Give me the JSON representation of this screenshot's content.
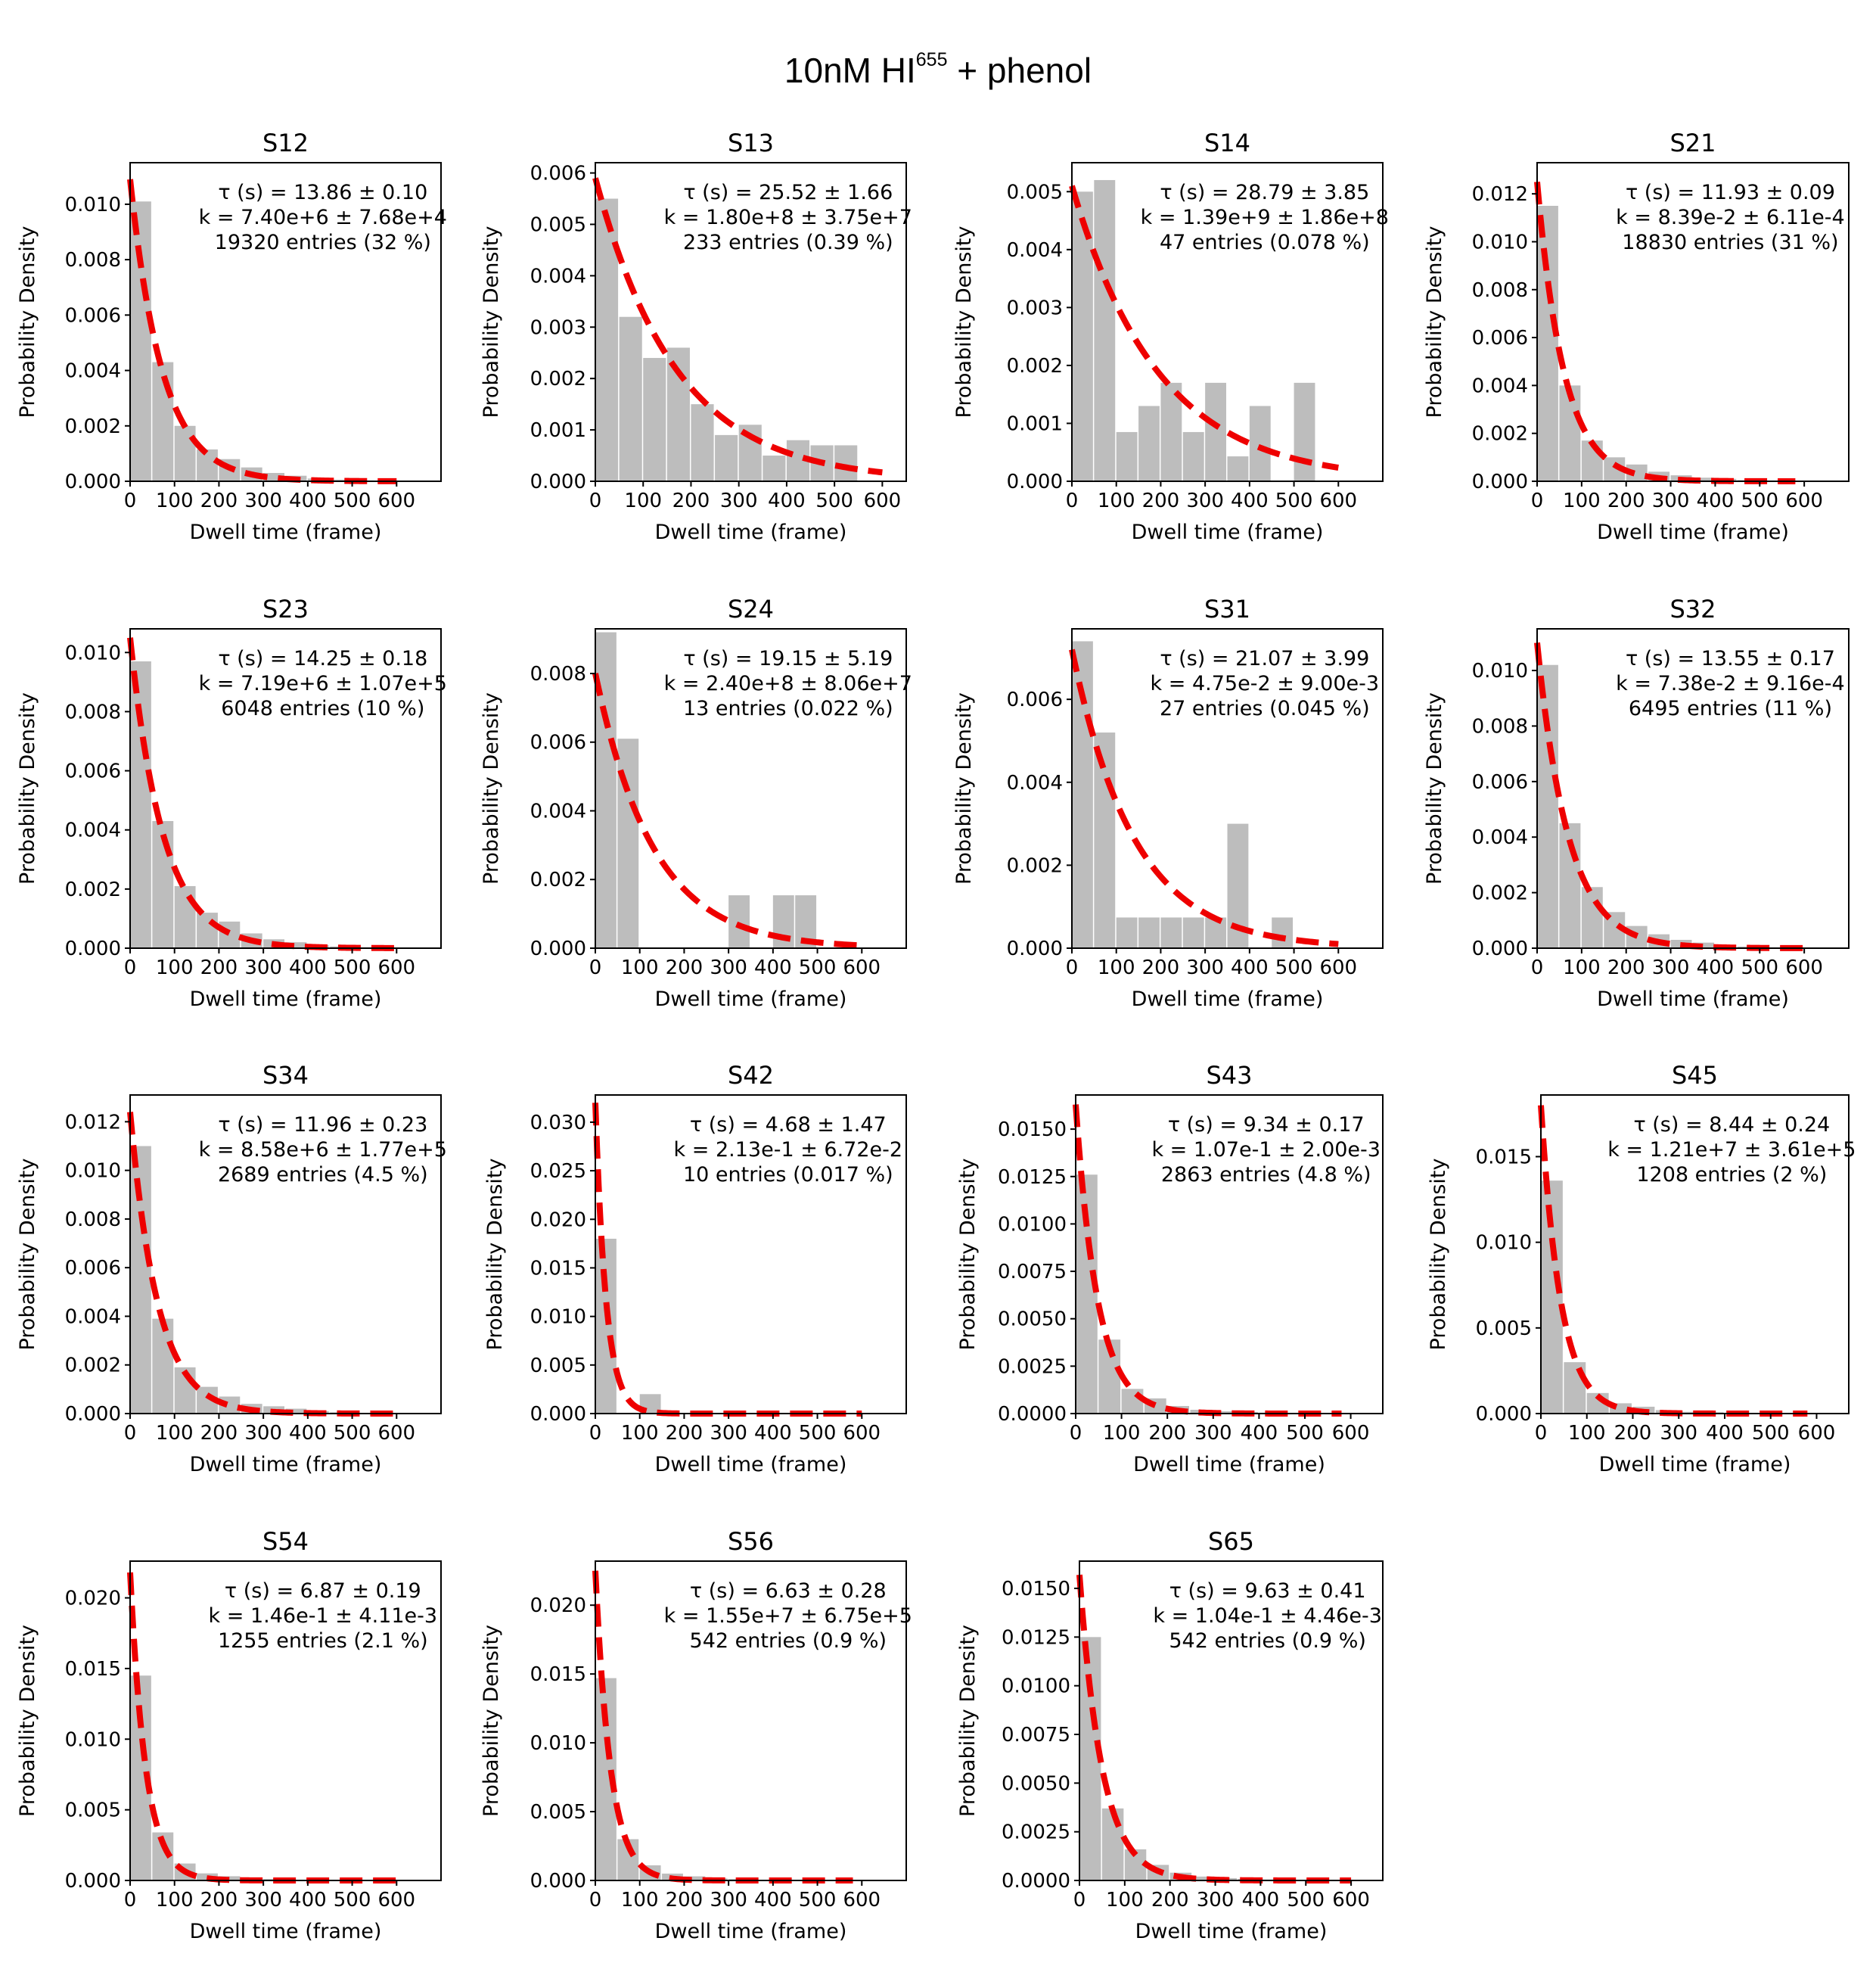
{
  "figure": {
    "title_main": "10nM HI",
    "title_sup": "655",
    "title_rest": " + phenol"
  },
  "colors": {
    "bar": "#bdbdbd",
    "fit": "#ee0000",
    "axis": "#000000"
  },
  "chart_data": [
    {
      "type": "bar",
      "title": "S12",
      "xlabel": "Dwell time (frame)",
      "ylabel": "Probability Density",
      "xlim": [
        0,
        700
      ],
      "ylim": [
        0,
        0.0115
      ],
      "xticks": [
        "0",
        "100",
        "200",
        "300",
        "400",
        "500",
        "600"
      ],
      "xtick_values": [
        0,
        100,
        200,
        300,
        400,
        500,
        600
      ],
      "yticks": [
        "0.000",
        "0.002",
        "0.004",
        "0.006",
        "0.008",
        "0.010"
      ],
      "ytick_values": [
        0,
        0.002,
        0.004,
        0.006,
        0.008,
        0.01
      ],
      "bin_edges": [
        0,
        50,
        100,
        150,
        200,
        250,
        300,
        350,
        400,
        450,
        500,
        550,
        600
      ],
      "values": [
        0.0101,
        0.0043,
        0.002,
        0.00115,
        0.0008,
        0.0005,
        0.0003,
        0.0002,
        0.0001,
        6e-05,
        3e-05,
        2e-05
      ],
      "fit": {
        "x_max": 600,
        "amp": 0.0109,
        "tau": 72.2
      },
      "annotations": [
        "τ (s) = 13.86 ± 0.10",
        "k = 7.40e+6 ± 7.68e+4",
        "19320 entries (32 %)"
      ]
    },
    {
      "type": "bar",
      "title": "S13",
      "xlabel": "Dwell time (frame)",
      "ylabel": "Probability Density",
      "xlim": [
        0,
        650
      ],
      "ylim": [
        0,
        0.0062
      ],
      "xticks": [
        "0",
        "100",
        "200",
        "300",
        "400",
        "500",
        "600"
      ],
      "xtick_values": [
        0,
        100,
        200,
        300,
        400,
        500,
        600
      ],
      "yticks": [
        "0.000",
        "0.001",
        "0.002",
        "0.003",
        "0.004",
        "0.005",
        "0.006"
      ],
      "ytick_values": [
        0,
        0.001,
        0.002,
        0.003,
        0.004,
        0.005,
        0.006
      ],
      "bin_edges": [
        0,
        50,
        100,
        150,
        200,
        250,
        300,
        350,
        400,
        450,
        500,
        550
      ],
      "values": [
        0.0055,
        0.0032,
        0.0024,
        0.0026,
        0.0015,
        0.0009,
        0.0011,
        0.0005,
        0.0008,
        0.0007,
        0.0007
      ],
      "fit": {
        "x_max": 600,
        "amp": 0.0059,
        "tau": 170
      },
      "annotations": [
        "τ (s) = 25.52 ± 1.66",
        "k = 1.80e+8 ± 3.75e+7",
        "233 entries (0.39 %)"
      ]
    },
    {
      "type": "bar",
      "title": "S14",
      "xlabel": "Dwell time (frame)",
      "ylabel": "Probability Density",
      "xlim": [
        0,
        700
      ],
      "ylim": [
        0,
        0.0055
      ],
      "xticks": [
        "0",
        "100",
        "200",
        "300",
        "400",
        "500",
        "600"
      ],
      "xtick_values": [
        0,
        100,
        200,
        300,
        400,
        500,
        600
      ],
      "yticks": [
        "0.000",
        "0.001",
        "0.002",
        "0.003",
        "0.004",
        "0.005"
      ],
      "ytick_values": [
        0,
        0.001,
        0.002,
        0.003,
        0.004,
        0.005
      ],
      "bin_edges": [
        0,
        50,
        100,
        150,
        200,
        250,
        300,
        350,
        400,
        450,
        500,
        550
      ],
      "values": [
        0.005,
        0.0052,
        0.00085,
        0.0013,
        0.0017,
        0.00085,
        0.0017,
        0.00043,
        0.0013,
        0,
        0.0017
      ],
      "fit": {
        "x_max": 600,
        "amp": 0.0051,
        "tau": 195
      },
      "annotations": [
        "τ (s) = 28.79 ± 3.85",
        "k = 1.39e+9 ± 1.86e+8",
        "47 entries (0.078 %)"
      ]
    },
    {
      "type": "bar",
      "title": "S21",
      "xlabel": "Dwell time (frame)",
      "ylabel": "Probability Density",
      "xlim": [
        0,
        700
      ],
      "ylim": [
        0,
        0.0133
      ],
      "xticks": [
        "0",
        "100",
        "200",
        "300",
        "400",
        "500",
        "600"
      ],
      "xtick_values": [
        0,
        100,
        200,
        300,
        400,
        500,
        600
      ],
      "yticks": [
        "0.000",
        "0.002",
        "0.004",
        "0.006",
        "0.008",
        "0.010",
        "0.012"
      ],
      "ytick_values": [
        0,
        0.002,
        0.004,
        0.006,
        0.008,
        0.01,
        0.012
      ],
      "bin_edges": [
        0,
        50,
        100,
        150,
        200,
        250,
        300,
        350,
        400,
        450,
        500,
        550,
        600
      ],
      "values": [
        0.0115,
        0.004,
        0.0017,
        0.001,
        0.0007,
        0.0004,
        0.00025,
        0.00015,
        0.0001,
        5e-05,
        3e-05,
        2e-05
      ],
      "fit": {
        "x_max": 580,
        "amp": 0.0125,
        "tau": 60
      },
      "annotations": [
        "τ (s) = 11.93 ± 0.09",
        "k = 8.39e-2 ± 6.11e-4",
        "18830 entries (31 %)"
      ]
    },
    {
      "type": "bar",
      "title": "S23",
      "xlabel": "Dwell time (frame)",
      "ylabel": "Probability Density",
      "xlim": [
        0,
        700
      ],
      "ylim": [
        0,
        0.0108
      ],
      "xticks": [
        "0",
        "100",
        "200",
        "300",
        "400",
        "500",
        "600"
      ],
      "xtick_values": [
        0,
        100,
        200,
        300,
        400,
        500,
        600
      ],
      "yticks": [
        "0.000",
        "0.002",
        "0.004",
        "0.006",
        "0.008",
        "0.010"
      ],
      "ytick_values": [
        0,
        0.002,
        0.004,
        0.006,
        0.008,
        0.01
      ],
      "bin_edges": [
        0,
        50,
        100,
        150,
        200,
        250,
        300,
        350,
        400,
        450,
        500,
        550,
        600
      ],
      "values": [
        0.0097,
        0.0043,
        0.0021,
        0.0012,
        0.0009,
        0.0005,
        0.0003,
        0.0002,
        0.0001,
        6e-05,
        3e-05,
        2e-05
      ],
      "fit": {
        "x_max": 600,
        "amp": 0.0105,
        "tau": 74
      },
      "annotations": [
        "τ (s) = 14.25 ± 0.18",
        "k = 7.19e+6 ± 1.07e+5",
        "6048 entries (10 %)"
      ]
    },
    {
      "type": "bar",
      "title": "S24",
      "xlabel": "Dwell time (frame)",
      "ylabel": "Probability Density",
      "xlim": [
        0,
        700
      ],
      "ylim": [
        0,
        0.0093
      ],
      "xticks": [
        "0",
        "100",
        "200",
        "300",
        "400",
        "500",
        "600"
      ],
      "xtick_values": [
        0,
        100,
        200,
        300,
        400,
        500,
        600
      ],
      "yticks": [
        "0.000",
        "0.002",
        "0.004",
        "0.006",
        "0.008"
      ],
      "ytick_values": [
        0,
        0.002,
        0.004,
        0.006,
        0.008
      ],
      "bin_edges": [
        0,
        50,
        100,
        150,
        200,
        250,
        300,
        350,
        400,
        450,
        500
      ],
      "values": [
        0.0092,
        0.0061,
        0,
        0,
        0,
        0,
        0.00154,
        0,
        0.00154,
        0.00154
      ],
      "fit": {
        "x_max": 600,
        "amp": 0.008,
        "tau": 130
      },
      "annotations": [
        "τ (s) = 19.15 ± 5.19",
        "k = 2.40e+8 ± 8.06e+7",
        "13 entries (0.022 %)"
      ]
    },
    {
      "type": "bar",
      "title": "S31",
      "xlabel": "Dwell time (frame)",
      "ylabel": "Probability Density",
      "xlim": [
        0,
        700
      ],
      "ylim": [
        0,
        0.0077
      ],
      "xticks": [
        "0",
        "100",
        "200",
        "300",
        "400",
        "500",
        "600"
      ],
      "xtick_values": [
        0,
        100,
        200,
        300,
        400,
        500,
        600
      ],
      "yticks": [
        "0.000",
        "0.002",
        "0.004",
        "0.006"
      ],
      "ytick_values": [
        0,
        0.002,
        0.004,
        0.006
      ],
      "bin_edges": [
        0,
        50,
        100,
        150,
        200,
        250,
        300,
        350,
        400,
        450,
        500
      ],
      "values": [
        0.0074,
        0.0052,
        0.00074,
        0.00074,
        0.00074,
        0.00074,
        0.00074,
        0.003,
        0,
        0.00074
      ],
      "fit": {
        "x_max": 600,
        "amp": 0.0072,
        "tau": 140
      },
      "annotations": [
        "τ (s) = 21.07 ± 3.99",
        "k = 4.75e-2 ± 9.00e-3",
        "27 entries (0.045 %)"
      ]
    },
    {
      "type": "bar",
      "title": "S32",
      "xlabel": "Dwell time (frame)",
      "ylabel": "Probability Density",
      "xlim": [
        0,
        700
      ],
      "ylim": [
        0,
        0.0115
      ],
      "xticks": [
        "0",
        "100",
        "200",
        "300",
        "400",
        "500",
        "600"
      ],
      "xtick_values": [
        0,
        100,
        200,
        300,
        400,
        500,
        600
      ],
      "yticks": [
        "0.000",
        "0.002",
        "0.004",
        "0.006",
        "0.008",
        "0.010"
      ],
      "ytick_values": [
        0,
        0.002,
        0.004,
        0.006,
        0.008,
        0.01
      ],
      "bin_edges": [
        0,
        50,
        100,
        150,
        200,
        250,
        300,
        350,
        400,
        450,
        500,
        550,
        600
      ],
      "values": [
        0.0102,
        0.0045,
        0.0022,
        0.0013,
        0.0008,
        0.0005,
        0.0003,
        0.0002,
        0.0001,
        6e-05,
        3e-05,
        2e-05
      ],
      "fit": {
        "x_max": 600,
        "amp": 0.011,
        "tau": 70
      },
      "annotations": [
        "τ (s) = 13.55 ± 0.17",
        "k = 7.38e-2 ± 9.16e-4",
        "6495 entries (11 %)"
      ]
    },
    {
      "type": "bar",
      "title": "S34",
      "xlabel": "Dwell time (frame)",
      "ylabel": "Probability Density",
      "xlim": [
        0,
        700
      ],
      "ylim": [
        0,
        0.0131
      ],
      "xticks": [
        "0",
        "100",
        "200",
        "300",
        "400",
        "500",
        "600"
      ],
      "xtick_values": [
        0,
        100,
        200,
        300,
        400,
        500,
        600
      ],
      "yticks": [
        "0.000",
        "0.002",
        "0.004",
        "0.006",
        "0.008",
        "0.010",
        "0.012"
      ],
      "ytick_values": [
        0,
        0.002,
        0.004,
        0.006,
        0.008,
        0.01,
        0.012
      ],
      "bin_edges": [
        0,
        50,
        100,
        150,
        200,
        250,
        300,
        350,
        400,
        450,
        500,
        550,
        600
      ],
      "values": [
        0.011,
        0.0039,
        0.0019,
        0.0011,
        0.0007,
        0.0004,
        0.0003,
        0.0002,
        0.0001,
        5e-05,
        3e-05,
        2e-05
      ],
      "fit": {
        "x_max": 600,
        "amp": 0.0124,
        "tau": 62
      },
      "annotations": [
        "τ (s) = 11.96 ± 0.23",
        "k = 8.58e+6 ± 1.77e+5",
        "2689 entries (4.5 %)"
      ]
    },
    {
      "type": "bar",
      "title": "S42",
      "xlabel": "Dwell time (frame)",
      "ylabel": "Probability Density",
      "xlim": [
        0,
        700
      ],
      "ylim": [
        0,
        0.0328
      ],
      "xticks": [
        "0",
        "100",
        "200",
        "300",
        "400",
        "500",
        "600"
      ],
      "xtick_values": [
        0,
        100,
        200,
        300,
        400,
        500,
        600
      ],
      "yticks": [
        "0.000",
        "0.005",
        "0.010",
        "0.015",
        "0.020",
        "0.025",
        "0.030"
      ],
      "ytick_values": [
        0,
        0.005,
        0.01,
        0.015,
        0.02,
        0.025,
        0.03
      ],
      "bin_edges": [
        0,
        50,
        100,
        150
      ],
      "values": [
        0.018,
        0,
        0.002
      ],
      "fit": {
        "x_max": 600,
        "amp": 0.032,
        "tau": 24
      },
      "annotations": [
        "τ (s) = 4.68 ± 1.47",
        "k = 2.13e-1 ± 6.72e-2",
        "10 entries (0.017 %)"
      ]
    },
    {
      "type": "bar",
      "title": "S43",
      "xlabel": "Dwell time (frame)",
      "ylabel": "Probability Density",
      "xlim": [
        0,
        670
      ],
      "ylim": [
        0,
        0.0168
      ],
      "xticks": [
        "0",
        "100",
        "200",
        "300",
        "400",
        "500",
        "600"
      ],
      "xtick_values": [
        0,
        100,
        200,
        300,
        400,
        500,
        600
      ],
      "yticks": [
        "0.0000",
        "0.0025",
        "0.0050",
        "0.0075",
        "0.0100",
        "0.0125",
        "0.0150"
      ],
      "ytick_values": [
        0,
        0.0025,
        0.005,
        0.0075,
        0.01,
        0.0125,
        0.015
      ],
      "bin_edges": [
        0,
        50,
        100,
        150,
        200,
        250,
        300,
        350,
        400,
        450,
        500,
        550,
        600
      ],
      "values": [
        0.0126,
        0.0039,
        0.0013,
        0.0008,
        0.0004,
        0.0002,
        0.00012,
        8e-05,
        5e-05,
        3e-05,
        2e-05,
        1e-05
      ],
      "fit": {
        "x_max": 580,
        "amp": 0.0163,
        "tau": 48
      },
      "annotations": [
        "τ (s) = 9.34 ± 0.17",
        "k = 1.07e-1 ± 2.00e-3",
        "2863 entries (4.8 %)"
      ]
    },
    {
      "type": "bar",
      "title": "S45",
      "xlabel": "Dwell time (frame)",
      "ylabel": "Probability Density",
      "xlim": [
        0,
        670
      ],
      "ylim": [
        0,
        0.0186
      ],
      "xticks": [
        "0",
        "100",
        "200",
        "300",
        "400",
        "500",
        "600"
      ],
      "xtick_values": [
        0,
        100,
        200,
        300,
        400,
        500,
        600
      ],
      "yticks": [
        "0.000",
        "0.005",
        "0.010",
        "0.015"
      ],
      "ytick_values": [
        0,
        0.005,
        0.01,
        0.015
      ],
      "bin_edges": [
        0,
        50,
        100,
        150,
        200,
        250,
        300,
        350,
        400,
        450,
        500,
        550,
        600
      ],
      "values": [
        0.0136,
        0.003,
        0.0012,
        0.0006,
        0.0004,
        0.0002,
        0.0001,
        8e-05,
        5e-05,
        3e-05,
        2e-05,
        1e-05
      ],
      "fit": {
        "x_max": 580,
        "amp": 0.018,
        "tau": 43
      },
      "annotations": [
        "τ (s) = 8.44 ± 0.24",
        "k = 1.21e+7 ± 3.61e+5",
        "1208 entries (2 %)"
      ]
    },
    {
      "type": "bar",
      "title": "S54",
      "xlabel": "Dwell time (frame)",
      "ylabel": "Probability Density",
      "xlim": [
        0,
        700
      ],
      "ylim": [
        0,
        0.0226
      ],
      "xticks": [
        "0",
        "100",
        "200",
        "300",
        "400",
        "500",
        "600"
      ],
      "xtick_values": [
        0,
        100,
        200,
        300,
        400,
        500,
        600
      ],
      "yticks": [
        "0.000",
        "0.005",
        "0.010",
        "0.015",
        "0.020"
      ],
      "ytick_values": [
        0,
        0.005,
        0.01,
        0.015,
        0.02
      ],
      "bin_edges": [
        0,
        50,
        100,
        150,
        200,
        250,
        300,
        350,
        400,
        450,
        500,
        550,
        600
      ],
      "values": [
        0.0145,
        0.0034,
        0.0012,
        0.0005,
        0.0003,
        0.00015,
        0.0001,
        5e-05,
        3e-05,
        2e-05,
        1e-05,
        1e-05
      ],
      "fit": {
        "x_max": 600,
        "amp": 0.0218,
        "tau": 35
      },
      "annotations": [
        "τ (s) = 6.87 ± 0.19",
        "k = 1.46e-1 ± 4.11e-3",
        "1255 entries (2.1 %)"
      ]
    },
    {
      "type": "bar",
      "title": "S56",
      "xlabel": "Dwell time (frame)",
      "ylabel": "Probability Density",
      "xlim": [
        0,
        700
      ],
      "ylim": [
        0,
        0.0232
      ],
      "xticks": [
        "0",
        "100",
        "200",
        "300",
        "400",
        "500",
        "600"
      ],
      "xtick_values": [
        0,
        100,
        200,
        300,
        400,
        500,
        600
      ],
      "yticks": [
        "0.000",
        "0.005",
        "0.010",
        "0.015",
        "0.020"
      ],
      "ytick_values": [
        0,
        0.005,
        0.01,
        0.015,
        0.02
      ],
      "bin_edges": [
        0,
        50,
        100,
        150,
        200,
        250,
        300,
        350,
        400,
        450,
        500,
        550,
        600
      ],
      "values": [
        0.0147,
        0.003,
        0.0011,
        0.0005,
        0.0003,
        0.00015,
        0.0001,
        5e-05,
        3e-05,
        2e-05,
        1e-05,
        1e-05
      ],
      "fit": {
        "x_max": 580,
        "amp": 0.0225,
        "tau": 34
      },
      "annotations": [
        "τ (s) = 6.63 ± 0.28",
        "k = 1.55e+7 ± 6.75e+5",
        "542 entries (0.9 %)"
      ]
    },
    {
      "type": "bar",
      "title": "S65",
      "xlabel": "Dwell time (frame)",
      "ylabel": "Probability Density",
      "xlim": [
        0,
        670
      ],
      "ylim": [
        0,
        0.0164
      ],
      "xticks": [
        "0",
        "100",
        "200",
        "300",
        "400",
        "500",
        "600"
      ],
      "xtick_values": [
        0,
        100,
        200,
        300,
        400,
        500,
        600
      ],
      "yticks": [
        "0.0000",
        "0.0025",
        "0.0050",
        "0.0075",
        "0.0100",
        "0.0125",
        "0.0150"
      ],
      "ytick_values": [
        0,
        0.0025,
        0.005,
        0.0075,
        0.01,
        0.0125,
        0.015
      ],
      "bin_edges": [
        0,
        50,
        100,
        150,
        200,
        250,
        300,
        350,
        400,
        450,
        500,
        550,
        600
      ],
      "values": [
        0.0125,
        0.0037,
        0.0016,
        0.0008,
        0.0004,
        0.0002,
        0.00012,
        8e-05,
        5e-05,
        3e-05,
        2e-05,
        1e-05
      ],
      "fit": {
        "x_max": 600,
        "amp": 0.0157,
        "tau": 50
      },
      "annotations": [
        "τ (s) = 9.63 ± 0.41",
        "k = 1.04e-1 ± 4.46e-3",
        "542 entries (0.9 %)"
      ]
    }
  ]
}
